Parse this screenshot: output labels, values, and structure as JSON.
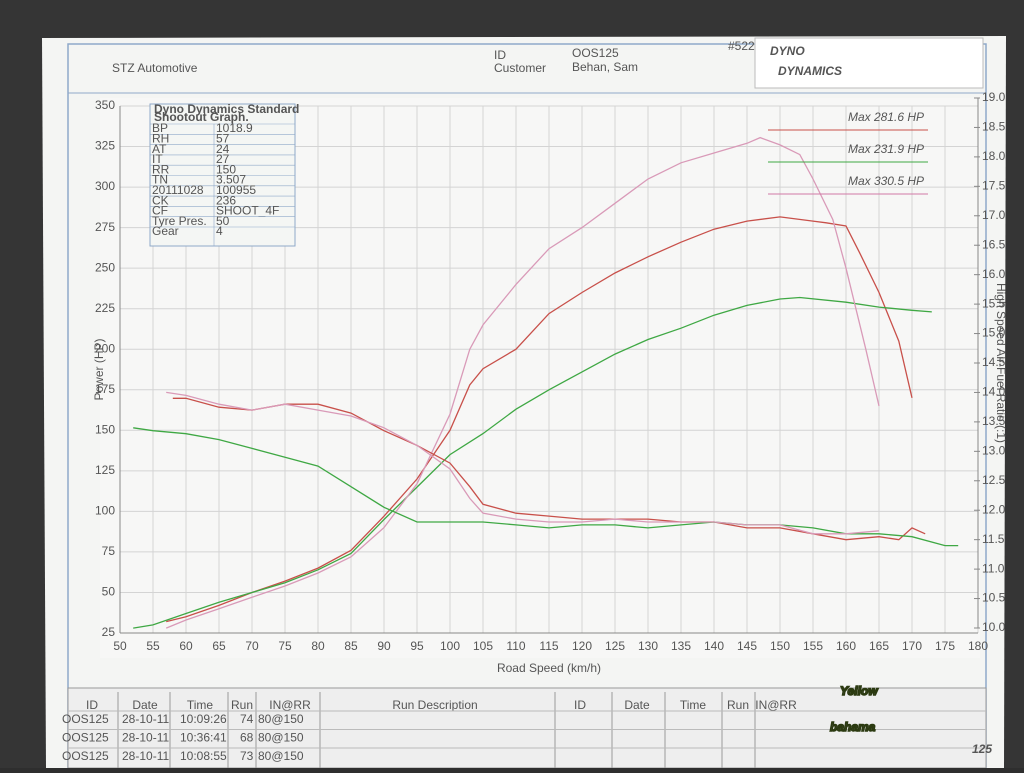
{
  "header": {
    "title": "STZ Automotive",
    "id_label": "ID",
    "id_value": "OOS125",
    "customer_label": "Customer",
    "customer_value": "Behan, Sam",
    "sheet_number": "#522",
    "logo_top": "DYNO",
    "logo_bottom": "DYNAMICS"
  },
  "info_table": {
    "title_lines": [
      "Dyno Dynamics Standard",
      "Shootout Graph."
    ],
    "rows": [
      [
        "BP",
        "1018.9"
      ],
      [
        "RH",
        "57"
      ],
      [
        "AT",
        "24"
      ],
      [
        "IT",
        "27"
      ],
      [
        "RR",
        "150"
      ],
      [
        "TN",
        "3.507"
      ],
      [
        "20111028",
        "100955"
      ],
      [
        "CK",
        "236"
      ],
      [
        "CF",
        "SHOOT_4F"
      ],
      [
        "Tyre Pres.",
        "50"
      ],
      [
        "Gear",
        "4"
      ]
    ]
  },
  "chart_data": {
    "type": "line",
    "x_label": "Road Speed (km/h)",
    "y_label": "Power (HP)",
    "y2_label": "High Speed Air-Fuel Ratio (:1)",
    "xlim": [
      50,
      180
    ],
    "xticks": [
      50,
      55,
      60,
      65,
      70,
      75,
      80,
      85,
      90,
      95,
      100,
      105,
      110,
      115,
      120,
      125,
      130,
      135,
      140,
      145,
      150,
      155,
      160,
      165,
      170,
      175,
      180
    ],
    "ylim": [
      25,
      350
    ],
    "yticks": [
      25,
      50,
      75,
      100,
      125,
      150,
      175,
      200,
      225,
      250,
      275,
      300,
      325,
      350
    ],
    "y2lim": [
      10,
      19
    ],
    "y2ticks": [
      {
        "value": 10,
        "label": "10.0"
      },
      10.5,
      {
        "value": 11,
        "label": "11.0"
      },
      11.5,
      {
        "value": 12,
        "label": "12.0"
      },
      12.5,
      {
        "value": 13,
        "label": "13.0"
      },
      13.5,
      {
        "value": 14,
        "label": "14.0"
      },
      14.5,
      {
        "value": 15,
        "label": "15.0"
      },
      15.5,
      {
        "value": 16,
        "label": "16.0"
      },
      16.5,
      {
        "value": 17,
        "label": "17.0"
      },
      17.5,
      {
        "value": 18,
        "label": "18.0"
      },
      18.5,
      {
        "value": 19,
        "label": "19.0"
      }
    ],
    "grid": true,
    "annotations": [
      {
        "text": "Max 281.6 HP",
        "color": "#c8504a"
      },
      {
        "text": "Max 231.9 HP",
        "color": "#3fa844"
      },
      {
        "text": "Max 330.5 HP",
        "color": "#d27aa6"
      }
    ],
    "series": [
      {
        "color": "#c8504a",
        "x": [
          57,
          60,
          65,
          70,
          75,
          80,
          85,
          90,
          95,
          100,
          103,
          105,
          110,
          115,
          120,
          125,
          130,
          135,
          140,
          145,
          150,
          155,
          157,
          160,
          162,
          165,
          168,
          170
        ],
        "values": [
          32,
          35,
          42,
          50,
          57,
          65,
          76,
          97,
          120,
          150,
          178,
          188,
          200,
          222,
          235,
          247,
          257,
          266,
          274,
          279,
          281.6,
          279,
          278,
          276,
          260,
          235,
          205,
          170
        ]
      },
      {
        "color": "#3fa844",
        "x": [
          52,
          55,
          60,
          65,
          70,
          75,
          80,
          85,
          90,
          95,
          100,
          105,
          110,
          115,
          120,
          125,
          130,
          135,
          140,
          145,
          150,
          153,
          160,
          165,
          170,
          173
        ],
        "values": [
          28,
          30,
          37,
          44,
          50,
          56,
          64,
          74,
          95,
          115,
          135,
          148,
          163,
          175,
          186,
          197,
          206,
          213,
          221,
          227,
          231,
          231.9,
          229,
          226,
          224,
          223
        ]
      },
      {
        "color": "#d99ab8",
        "x": [
          57,
          60,
          65,
          70,
          75,
          80,
          85,
          90,
          95,
          100,
          103,
          105,
          110,
          115,
          120,
          125,
          130,
          135,
          140,
          145,
          147,
          150,
          153,
          155,
          158,
          160,
          163,
          165
        ],
        "values": [
          28,
          33,
          40,
          47,
          54,
          62,
          72,
          90,
          117,
          160,
          200,
          215,
          240,
          262,
          275,
          290,
          305,
          315,
          321,
          327,
          330.5,
          326,
          320,
          305,
          280,
          250,
          200,
          165
        ]
      },
      {
        "color": "#c8504a",
        "axis": "y2",
        "x": [
          58,
          60,
          65,
          70,
          75,
          80,
          85,
          90,
          95,
          100,
          103,
          105,
          110,
          115,
          120,
          125,
          130,
          135,
          140,
          145,
          150,
          155,
          160,
          165,
          168,
          170,
          172
        ],
        "values": [
          13.9,
          13.9,
          13.75,
          13.7,
          13.8,
          13.8,
          13.65,
          13.35,
          13.1,
          12.8,
          12.4,
          12.1,
          11.95,
          11.9,
          11.85,
          11.85,
          11.85,
          11.8,
          11.8,
          11.7,
          11.7,
          11.6,
          11.5,
          11.55,
          11.5,
          11.7,
          11.6
        ]
      },
      {
        "color": "#3fa844",
        "axis": "y2",
        "x": [
          52,
          55,
          60,
          65,
          70,
          75,
          80,
          85,
          90,
          95,
          100,
          105,
          110,
          115,
          120,
          125,
          130,
          135,
          140,
          145,
          150,
          155,
          160,
          165,
          170,
          175,
          177
        ],
        "values": [
          13.4,
          13.35,
          13.3,
          13.2,
          13.05,
          12.9,
          12.75,
          12.4,
          12.05,
          11.8,
          11.8,
          11.8,
          11.75,
          11.7,
          11.75,
          11.75,
          11.7,
          11.75,
          11.8,
          11.75,
          11.75,
          11.7,
          11.6,
          11.6,
          11.55,
          11.4,
          11.4
        ]
      },
      {
        "color": "#d99ab8",
        "axis": "y2",
        "x": [
          57,
          60,
          65,
          70,
          75,
          80,
          85,
          90,
          95,
          100,
          103,
          105,
          110,
          115,
          120,
          125,
          130,
          135,
          140,
          145,
          150,
          155,
          160,
          165
        ],
        "values": [
          14.0,
          13.95,
          13.8,
          13.7,
          13.8,
          13.7,
          13.6,
          13.4,
          13.1,
          12.7,
          12.2,
          11.95,
          11.85,
          11.8,
          11.8,
          11.85,
          11.8,
          11.8,
          11.8,
          11.75,
          11.75,
          11.6,
          11.6,
          11.65
        ]
      }
    ]
  },
  "run_table": {
    "headers": [
      "ID",
      "Date",
      "Time",
      "Run",
      "IN@RR",
      "Run Description",
      "ID",
      "Date",
      "Time",
      "Run",
      "IN@RR"
    ],
    "rows": [
      [
        "OOS125",
        "28-10-11",
        "10:09:26",
        "74",
        "80@150"
      ],
      [
        "OOS125",
        "28-10-11",
        "10:36:41",
        "68",
        "80@150"
      ],
      [
        "OOS125",
        "28-10-11",
        "10:08:55",
        "73",
        "80@150"
      ]
    ],
    "row_colors": [
      "#c8504a",
      "#3fa844",
      "#d27aa6"
    ]
  },
  "watermark": {
    "line1": "Yellow",
    "line2": "bahama",
    "badge": "125"
  }
}
